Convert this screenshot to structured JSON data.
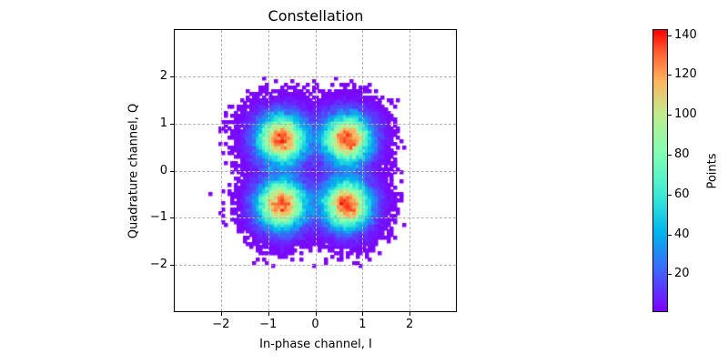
{
  "chart_data": {
    "type": "heatmap",
    "subtype": "2d-histogram",
    "title": "Constellation",
    "xlabel": "In-phase channel, I",
    "ylabel": "Quadrature channel, Q",
    "xlim": [
      -3,
      3
    ],
    "ylim": [
      -3,
      3
    ],
    "xticks": [
      -2,
      -1,
      0,
      1,
      2
    ],
    "yticks": [
      -2,
      -1,
      0,
      1,
      2
    ],
    "xtick_labels": [
      "−2",
      "−1",
      "0",
      "1",
      "2"
    ],
    "ytick_labels": [
      "2",
      "1",
      "0",
      "−1",
      "−2"
    ],
    "grid": true,
    "grid_style": "dashed",
    "colormap": "rainbow",
    "colorbar": {
      "label": "Points",
      "range": [
        1,
        143
      ],
      "ticks": [
        20,
        40,
        60,
        80,
        100,
        120,
        140
      ]
    },
    "clusters": [
      {
        "I": -0.7,
        "Q": 0.7,
        "peak_count": 135
      },
      {
        "I": 0.7,
        "Q": 0.7,
        "peak_count": 135
      },
      {
        "I": -0.7,
        "Q": -0.7,
        "peak_count": 143
      },
      {
        "I": 0.7,
        "Q": -0.7,
        "peak_count": 138
      }
    ],
    "cluster_sigma": 0.33,
    "data_extent": [
      -2.2,
      2.2
    ],
    "bin_width": 0.067
  }
}
